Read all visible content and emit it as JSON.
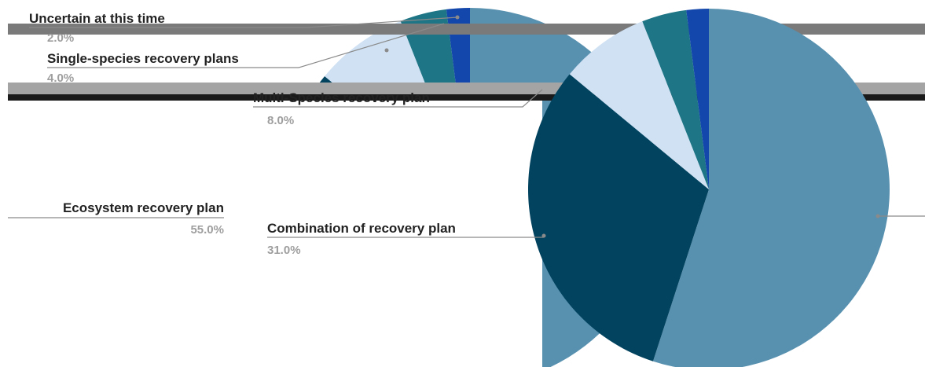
{
  "chart_data": {
    "type": "pie",
    "slices": [
      {
        "label": "Ecosystem recovery plan",
        "value": 55.0,
        "value_text": "55.0%",
        "color": "#5891b0"
      },
      {
        "label": "Combination of recovery plan",
        "value": 31.0,
        "value_text": "31.0%",
        "color": "#02435f"
      },
      {
        "label": "Multi-Species recovery plan",
        "value": 8.0,
        "value_text": "8.0%",
        "color": "#cfe1f3"
      },
      {
        "label": "Single-species recovery plans",
        "value": 4.0,
        "value_text": "4.0%",
        "color": "#1e7585"
      },
      {
        "label": "Uncertain at this time",
        "value": 2.0,
        "value_text": "2.0%",
        "color": "#1447ab"
      }
    ],
    "legend": "none",
    "labels": "outside with leader lines"
  }
}
